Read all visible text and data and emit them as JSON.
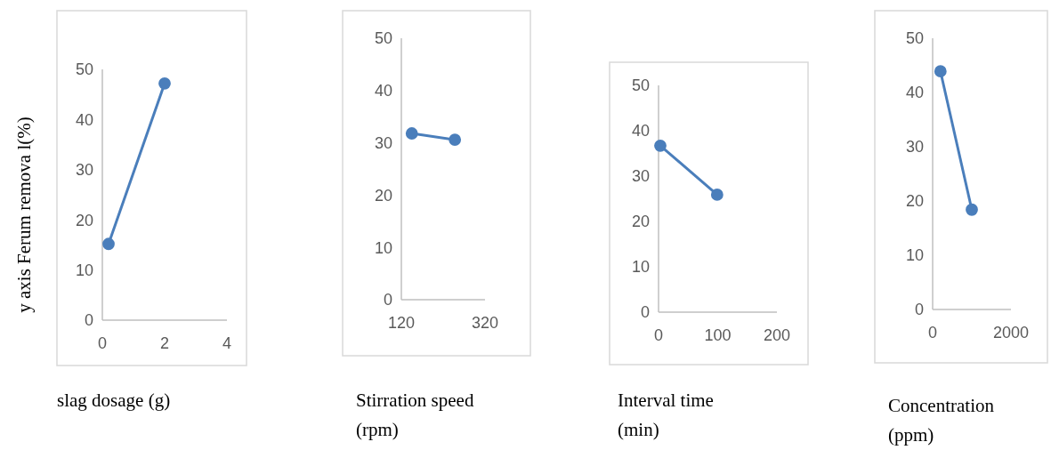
{
  "chart_data": [
    {
      "type": "line",
      "ylabel": "y axis Ferum remova l(%)",
      "xlabel": "slag dosage (g)",
      "x": [
        0.2,
        2
      ],
      "series": [
        {
          "color": "#4a7ebb",
          "values": [
            15.2,
            47.2
          ]
        }
      ],
      "xlim": [
        0,
        4
      ],
      "xticks": [
        0,
        2,
        4
      ],
      "ylim": [
        0,
        50
      ],
      "yticks": [
        0,
        10,
        20,
        30,
        40,
        50
      ],
      "marker": "circle"
    },
    {
      "type": "line",
      "xlabel": "Stirration speed (rpm)",
      "x": [
        145,
        248
      ],
      "series": [
        {
          "color": "#4a7ebb",
          "values": [
            31.8,
            30.6
          ]
        }
      ],
      "xlim": [
        120,
        320
      ],
      "xticks": [
        120,
        320
      ],
      "ylim": [
        0,
        50
      ],
      "yticks": [
        0,
        10,
        20,
        30,
        40,
        50
      ],
      "marker": "circle"
    },
    {
      "type": "line",
      "xlabel": "Interval time (min)",
      "x": [
        3,
        99
      ],
      "series": [
        {
          "color": "#4a7ebb",
          "values": [
            36.7,
            25.9
          ]
        }
      ],
      "xlim": [
        0,
        200
      ],
      "xticks": [
        0,
        100,
        200
      ],
      "ylim": [
        0,
        50
      ],
      "yticks": [
        0,
        10,
        20,
        30,
        40,
        50
      ],
      "marker": "circle"
    },
    {
      "type": "line",
      "xlabel": "Concentration (ppm)",
      "x": [
        200,
        1000
      ],
      "series": [
        {
          "color": "#4a7ebb",
          "values": [
            43.9,
            18.4
          ]
        }
      ],
      "xlim": [
        0,
        2000
      ],
      "xticks": [
        0,
        2000
      ],
      "ylim": [
        0,
        50
      ],
      "yticks": [
        0,
        10,
        20,
        30,
        40,
        50
      ],
      "marker": "circle"
    }
  ]
}
